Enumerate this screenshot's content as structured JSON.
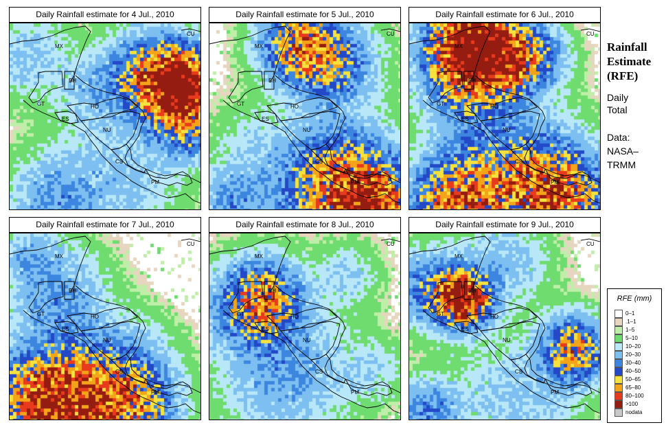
{
  "figure": {
    "side_title": "Rainfall Estimate (RFE)",
    "period_line1": "Daily",
    "period_line2": "Total",
    "source_line1": "Data:",
    "source_line2": "NASA–",
    "source_line3": "TRMM"
  },
  "panels": [
    {
      "title": "Daily Rainfall estimate for  4 Jul., 2010",
      "seed": 4
    },
    {
      "title": "Daily Rainfall estimate for  5 Jul., 2010",
      "seed": 5
    },
    {
      "title": "Daily Rainfall estimate for  6 Jul., 2010",
      "seed": 6
    },
    {
      "title": "Daily Rainfall estimate for  7 Jul., 2010",
      "seed": 7
    },
    {
      "title": "Daily Rainfall estimate for  8 Jul., 2010",
      "seed": 8
    },
    {
      "title": "Daily Rainfall estimate for  9 Jul., 2010",
      "seed": 9
    }
  ],
  "country_labels": [
    "MX",
    "BH",
    "GT",
    "HO",
    "ES",
    "NU",
    "CS",
    "PM",
    "CU"
  ],
  "legend": {
    "title": "RFE (mm)",
    "entries": [
      {
        "label": "0–1",
        "color": "#ffffff"
      },
      {
        "label": ".1–1",
        "color": "#e6d6bf"
      },
      {
        "label": "1–5",
        "color": "#bfeea8"
      },
      {
        "label": "5–10",
        "color": "#6fdc6f"
      },
      {
        "label": "10–20",
        "color": "#b8e8f8"
      },
      {
        "label": "20–30",
        "color": "#7dbff0"
      },
      {
        "label": "30–40",
        "color": "#3d86e0"
      },
      {
        "label": "40–50",
        "color": "#2349c8"
      },
      {
        "label": "50–65",
        "color": "#f6e23c"
      },
      {
        "label": "65–80",
        "color": "#f4a418"
      },
      {
        "label": "80–100",
        "color": "#e83a1c"
      },
      {
        ">100": "",
        "label": ">100",
        "color": "#951c10"
      },
      {
        "label": "nodata",
        "color": "#c8c8c8"
      }
    ]
  }
}
